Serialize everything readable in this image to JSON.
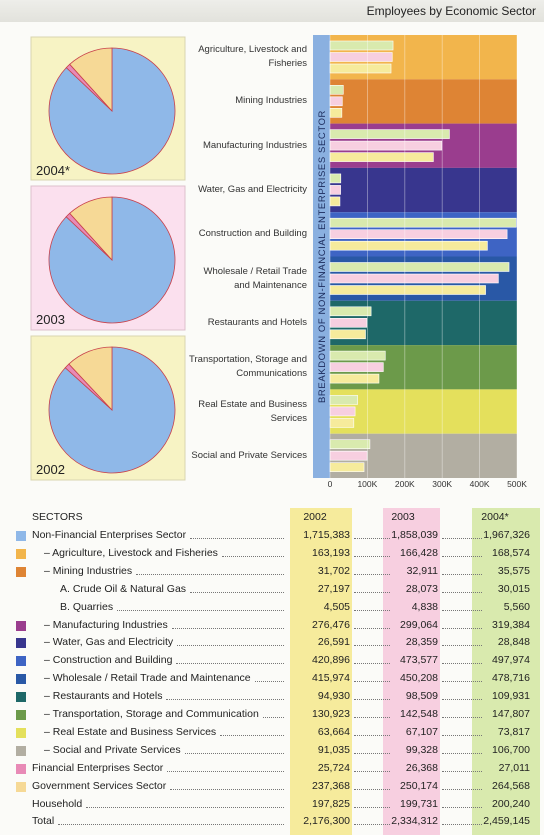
{
  "header": {
    "title": "Employees by Economic Sector"
  },
  "chart_data": {
    "type": "bar",
    "orientation": "horizontal",
    "axis_label": "BREAKDOWN OF NON-FINANCIAL ENTERPRISES SECTOR",
    "categories": [
      "Agriculture, Livestock and Fisheries",
      "Mining Industries",
      "Manufacturing Industries",
      "Water, Gas and Electricity",
      "Construction and Building",
      "Wholesale / Retail Trade and Maintenance",
      "Restaurants and Hotels",
      "Transportation, Storage and Communications",
      "Real Estate and Business Services",
      "Social and Private Services"
    ],
    "xlim": [
      0,
      500000
    ],
    "xticks": [
      0,
      {
        "value": 100000,
        "label": "100K"
      },
      {
        "value": 200000,
        "label": "200K"
      },
      {
        "value": 300000,
        "label": "300K"
      },
      {
        "value": 400000,
        "label": "400K"
      },
      {
        "value": 500000,
        "label": "500K"
      }
    ],
    "grid": true
  },
  "table": {
    "header": "SECTORS",
    "columns": [
      {
        "label": "2002",
        "color": "#f6eb9c"
      },
      {
        "label": "2003",
        "color": "#f7cfe0"
      },
      {
        "label": "2004*",
        "color": "#d9eaae"
      }
    ],
    "rows": [
      {
        "label": "Non-Financial Enterprises Sector",
        "color": "#8fb8e8",
        "values": [
          1715383,
          1858039,
          1967326
        ],
        "value_labels": [
          "1,715,383",
          "1,858,039",
          "1,967,326"
        ]
      },
      {
        "label": "– Agriculture, Livestock and Fisheries",
        "color": "#f2b54c",
        "values": [
          163193,
          166428,
          168574
        ],
        "value_labels": [
          "163,193",
          "166,428",
          "168,574"
        ]
      },
      {
        "label": "– Mining Industries",
        "color": "#de8434",
        "values": [
          31702,
          32911,
          35575
        ],
        "value_labels": [
          "31,702",
          "32,911",
          "35,575"
        ]
      },
      {
        "label": "A. Crude Oil & Natural Gas",
        "values": [
          27197,
          28073,
          30015
        ],
        "value_labels": [
          "27,197",
          "28,073",
          "30,015"
        ]
      },
      {
        "label": "B. Quarries",
        "values": [
          4505,
          4838,
          5560
        ],
        "value_labels": [
          "4,505",
          "4,838",
          "5,560"
        ]
      },
      {
        "label": "– Manufacturing Industries",
        "color": "#9a3d8e",
        "values": [
          276476,
          299064,
          319384
        ],
        "value_labels": [
          "276,476",
          "299,064",
          "319,384"
        ]
      },
      {
        "label": "– Water, Gas and Electricity",
        "color": "#38368e",
        "values": [
          26591,
          28359,
          28848
        ],
        "value_labels": [
          "26,591",
          "28,359",
          "28,848"
        ]
      },
      {
        "label": "– Construction and Building",
        "color": "#3e64c4",
        "values": [
          420896,
          473577,
          497974
        ],
        "value_labels": [
          "420,896",
          "473,577",
          "497,974"
        ]
      },
      {
        "label": "– Wholesale / Retail Trade and Maintenance",
        "color": "#2958a6",
        "values": [
          415974,
          450208,
          478716
        ],
        "value_labels": [
          "415,974",
          "450,208",
          "478,716"
        ]
      },
      {
        "label": "– Restaurants and Hotels",
        "color": "#1e6868",
        "values": [
          94930,
          98509,
          109931
        ],
        "value_labels": [
          "94,930",
          "98,509",
          "109,931"
        ]
      },
      {
        "label": "– Transportation, Storage and Communication",
        "color": "#6c9a4a",
        "values": [
          130923,
          142548,
          147807
        ],
        "value_labels": [
          "130,923",
          "142,548",
          "147,807"
        ]
      },
      {
        "label": "– Real Estate and Business Services",
        "color": "#e4e05c",
        "values": [
          63664,
          67107,
          73817
        ],
        "value_labels": [
          "63,664",
          "67,107",
          "73,817"
        ]
      },
      {
        "label": "– Social and Private Services",
        "color": "#b2aea2",
        "values": [
          91035,
          99328,
          106700
        ],
        "value_labels": [
          "91,035",
          "99,328",
          "106,700"
        ]
      },
      {
        "label": "Financial Enterprises Sector",
        "color": "#e88ab6",
        "values": [
          25724,
          26368,
          27011
        ],
        "value_labels": [
          "25,724",
          "26,368",
          "27,011"
        ]
      },
      {
        "label": "Government Services Sector",
        "color": "#f6d996",
        "values": [
          237368,
          250174,
          264568
        ],
        "value_labels": [
          "237,368",
          "250,174",
          "264,568"
        ]
      },
      {
        "label": "Household",
        "values": [
          197825,
          199731,
          200240
        ],
        "value_labels": [
          "197,825",
          "199,731",
          "200,240"
        ]
      },
      {
        "label": "Total",
        "values": [
          2176300,
          2334312,
          2459145
        ],
        "value_labels": [
          "2,176,300",
          "2,334,312",
          "2,459,145"
        ]
      }
    ]
  }
}
